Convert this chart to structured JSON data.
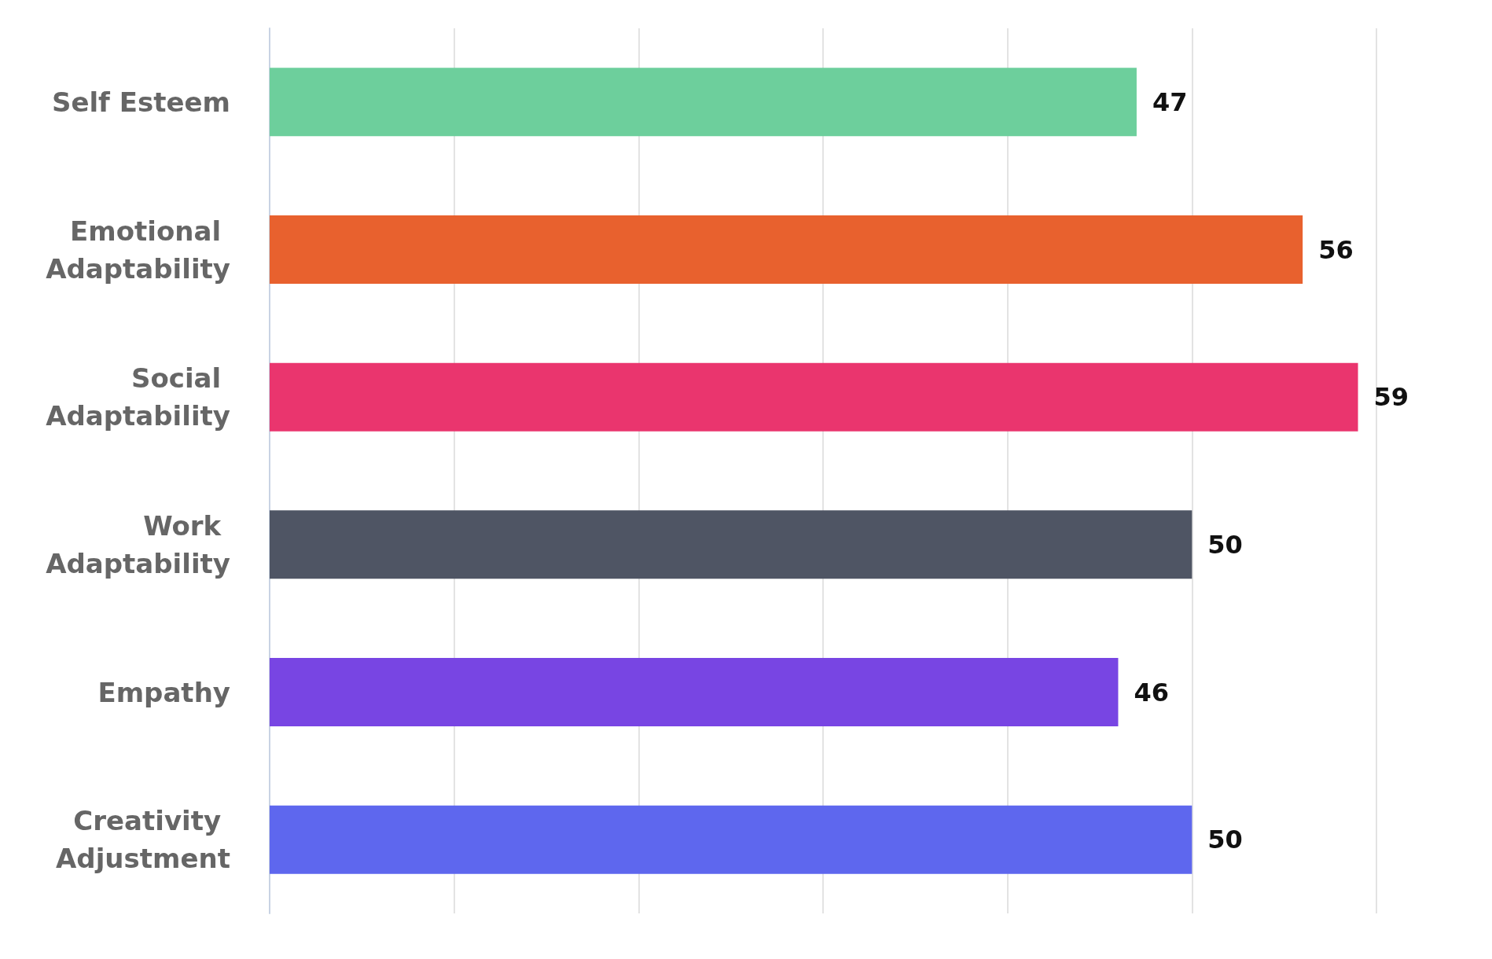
{
  "chart_data": {
    "type": "bar",
    "orientation": "horizontal",
    "categories": [
      "Self Esteem",
      "Emotional Adaptability",
      "Social Adaptability",
      "Work Adaptability",
      "Empathy",
      "Creativity Adjustment"
    ],
    "values": [
      47,
      56,
      59,
      50,
      46,
      50
    ],
    "colors": [
      "#6dcf9c",
      "#e8612e",
      "#ea356e",
      "#4f5564",
      "#7845e3",
      "#5e67ee"
    ],
    "xlim": [
      0,
      60
    ],
    "xticks": [
      {
        "value": 0,
        "label": null
      },
      {
        "value": 10,
        "label": null
      },
      {
        "value": 20,
        "label": null
      },
      {
        "value": 30,
        "label": null
      },
      {
        "value": 40,
        "label": null
      },
      {
        "value": 50,
        "label": null
      },
      {
        "value": 60,
        "label": null
      }
    ],
    "tick_labels": "y",
    "grid": "x",
    "data_labels": true
  }
}
